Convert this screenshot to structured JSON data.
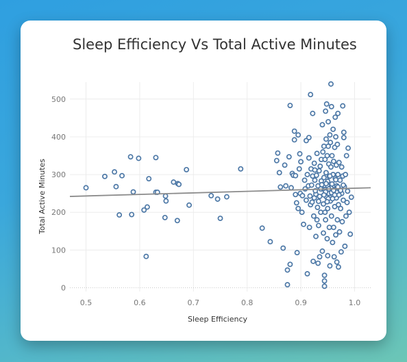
{
  "chart_data": {
    "type": "scatter",
    "title": "Sleep Efficiency Vs Total Active Minutes",
    "xlabel": "Sleep Efficiency",
    "ylabel": "Total Active Minutes",
    "xlim": [
      0.47,
      1.03
    ],
    "ylim": [
      -10,
      545
    ],
    "x_ticks": [
      "0.5",
      "0.6",
      "0.7",
      "0.8",
      "0.9",
      "1.0"
    ],
    "y_ticks": [
      "0",
      "100",
      "200",
      "300",
      "400",
      "500"
    ],
    "grid": true,
    "legend": "none",
    "point_color": "#4e79a7",
    "trend_color": "#8c8c8c",
    "trend_line": {
      "x": [
        0.47,
        1.03
      ],
      "y": [
        242,
        265
      ]
    },
    "points": [
      [
        0.5,
        265
      ],
      [
        0.535,
        295
      ],
      [
        0.553,
        307
      ],
      [
        0.556,
        268
      ],
      [
        0.562,
        193
      ],
      [
        0.567,
        297
      ],
      [
        0.583,
        347
      ],
      [
        0.585,
        194
      ],
      [
        0.588,
        254
      ],
      [
        0.598,
        343
      ],
      [
        0.608,
        206
      ],
      [
        0.612,
        83
      ],
      [
        0.614,
        214
      ],
      [
        0.617,
        289
      ],
      [
        0.63,
        345
      ],
      [
        0.63,
        253
      ],
      [
        0.633,
        253
      ],
      [
        0.647,
        186
      ],
      [
        0.648,
        243
      ],
      [
        0.649,
        230
      ],
      [
        0.663,
        280
      ],
      [
        0.67,
        178
      ],
      [
        0.671,
        276
      ],
      [
        0.673,
        274
      ],
      [
        0.687,
        313
      ],
      [
        0.692,
        219
      ],
      [
        0.733,
        244
      ],
      [
        0.745,
        235
      ],
      [
        0.75,
        184
      ],
      [
        0.762,
        241
      ],
      [
        0.788,
        315
      ],
      [
        0.828,
        158
      ],
      [
        0.843,
        122
      ],
      [
        0.855,
        337
      ],
      [
        0.857,
        357
      ],
      [
        0.86,
        305
      ],
      [
        0.862,
        267
      ],
      [
        0.867,
        105
      ],
      [
        0.87,
        325
      ],
      [
        0.872,
        270
      ],
      [
        0.875,
        8
      ],
      [
        0.875,
        47
      ],
      [
        0.878,
        347
      ],
      [
        0.88,
        483
      ],
      [
        0.88,
        62
      ],
      [
        0.882,
        265
      ],
      [
        0.884,
        303
      ],
      [
        0.886,
        298
      ],
      [
        0.888,
        392
      ],
      [
        0.888,
        415
      ],
      [
        0.89,
        297
      ],
      [
        0.89,
        247
      ],
      [
        0.892,
        225
      ],
      [
        0.893,
        93
      ],
      [
        0.895,
        210
      ],
      [
        0.895,
        405
      ],
      [
        0.897,
        315
      ],
      [
        0.898,
        355
      ],
      [
        0.899,
        250
      ],
      [
        0.9,
        334
      ],
      [
        0.902,
        200
      ],
      [
        0.903,
        244
      ],
      [
        0.905,
        168
      ],
      [
        0.907,
        285
      ],
      [
        0.908,
        262
      ],
      [
        0.91,
        390
      ],
      [
        0.91,
        232
      ],
      [
        0.912,
        37
      ],
      [
        0.912,
        300
      ],
      [
        0.914,
        270
      ],
      [
        0.915,
        344
      ],
      [
        0.915,
        398
      ],
      [
        0.916,
        160
      ],
      [
        0.918,
        512
      ],
      [
        0.918,
        220
      ],
      [
        0.919,
        315
      ],
      [
        0.92,
        272
      ],
      [
        0.922,
        462
      ],
      [
        0.922,
        296
      ],
      [
        0.923,
        70
      ],
      [
        0.924,
        190
      ],
      [
        0.925,
        238
      ],
      [
        0.925,
        330
      ],
      [
        0.926,
        285
      ],
      [
        0.928,
        136
      ],
      [
        0.928,
        248
      ],
      [
        0.929,
        298
      ],
      [
        0.93,
        356
      ],
      [
        0.93,
        180
      ],
      [
        0.931,
        213
      ],
      [
        0.932,
        65
      ],
      [
        0.932,
        270
      ],
      [
        0.933,
        165
      ],
      [
        0.934,
        310
      ],
      [
        0.935,
        242
      ],
      [
        0.935,
        82
      ],
      [
        0.936,
        322
      ],
      [
        0.937,
        200
      ],
      [
        0.938,
        340
      ],
      [
        0.938,
        283
      ],
      [
        0.94,
        432
      ],
      [
        0.94,
        97
      ],
      [
        0.94,
        262
      ],
      [
        0.941,
        360
      ],
      [
        0.942,
        145
      ],
      [
        0.942,
        222
      ],
      [
        0.943,
        375
      ],
      [
        0.943,
        292
      ],
      [
        0.944,
        4
      ],
      [
        0.944,
        18
      ],
      [
        0.944,
        33
      ],
      [
        0.945,
        340
      ],
      [
        0.945,
        260
      ],
      [
        0.945,
        200
      ],
      [
        0.946,
        468
      ],
      [
        0.946,
        180
      ],
      [
        0.947,
        394
      ],
      [
        0.947,
        305
      ],
      [
        0.948,
        240
      ],
      [
        0.948,
        487
      ],
      [
        0.949,
        350
      ],
      [
        0.949,
        130
      ],
      [
        0.95,
        282
      ],
      [
        0.95,
        270
      ],
      [
        0.95,
        210
      ],
      [
        0.95,
        85
      ],
      [
        0.951,
        375
      ],
      [
        0.951,
        440
      ],
      [
        0.952,
        328
      ],
      [
        0.952,
        250
      ],
      [
        0.953,
        160
      ],
      [
        0.953,
        295
      ],
      [
        0.954,
        405
      ],
      [
        0.954,
        58
      ],
      [
        0.955,
        385
      ],
      [
        0.955,
        265
      ],
      [
        0.955,
        230
      ],
      [
        0.956,
        540
      ],
      [
        0.956,
        320
      ],
      [
        0.957,
        480
      ],
      [
        0.957,
        190
      ],
      [
        0.958,
        350
      ],
      [
        0.958,
        275
      ],
      [
        0.959,
        120
      ],
      [
        0.96,
        300
      ],
      [
        0.96,
        245
      ],
      [
        0.96,
        420
      ],
      [
        0.961,
        335
      ],
      [
        0.961,
        160
      ],
      [
        0.962,
        82
      ],
      [
        0.962,
        260
      ],
      [
        0.963,
        372
      ],
      [
        0.963,
        215
      ],
      [
        0.964,
        290
      ],
      [
        0.964,
        452
      ],
      [
        0.965,
        400
      ],
      [
        0.965,
        140
      ],
      [
        0.966,
        325
      ],
      [
        0.966,
        238
      ],
      [
        0.967,
        270
      ],
      [
        0.967,
        68
      ],
      [
        0.968,
        380
      ],
      [
        0.968,
        180
      ],
      [
        0.969,
        300
      ],
      [
        0.969,
        462
      ],
      [
        0.97,
        220
      ],
      [
        0.97,
        55
      ],
      [
        0.971,
        332
      ],
      [
        0.972,
        148
      ],
      [
        0.972,
        260
      ],
      [
        0.973,
        285
      ],
      [
        0.974,
        210
      ],
      [
        0.975,
        95
      ],
      [
        0.976,
        320
      ],
      [
        0.976,
        250
      ],
      [
        0.977,
        175
      ],
      [
        0.978,
        482
      ],
      [
        0.978,
        296
      ],
      [
        0.979,
        232
      ],
      [
        0.98,
        398
      ],
      [
        0.98,
        412
      ],
      [
        0.981,
        268
      ],
      [
        0.982,
        110
      ],
      [
        0.983,
        300
      ],
      [
        0.984,
        190
      ],
      [
        0.985,
        350
      ],
      [
        0.986,
        226
      ],
      [
        0.987,
        256
      ],
      [
        0.988,
        370
      ],
      [
        0.99,
        200
      ],
      [
        0.992,
        142
      ],
      [
        0.994,
        240
      ],
      [
        0.917,
        243
      ],
      [
        0.921,
        227
      ],
      [
        0.927,
        257
      ],
      [
        0.933,
        229
      ],
      [
        0.939,
        273
      ],
      [
        0.946,
        254
      ],
      [
        0.951,
        236
      ],
      [
        0.957,
        252
      ],
      [
        0.963,
        246
      ],
      [
        0.969,
        267
      ],
      [
        0.974,
        258
      ],
      [
        0.979,
        272
      ],
      [
        0.926,
        312
      ],
      [
        0.937,
        262
      ],
      [
        0.943,
        246
      ],
      [
        0.949,
        228
      ],
      [
        0.954,
        296
      ],
      [
        0.959,
        236
      ],
      [
        0.965,
        286
      ],
      [
        0.971,
        246
      ],
      [
        0.956,
        264
      ],
      [
        0.952,
        262
      ],
      [
        0.961,
        258
      ],
      [
        0.947,
        276
      ]
    ]
  }
}
